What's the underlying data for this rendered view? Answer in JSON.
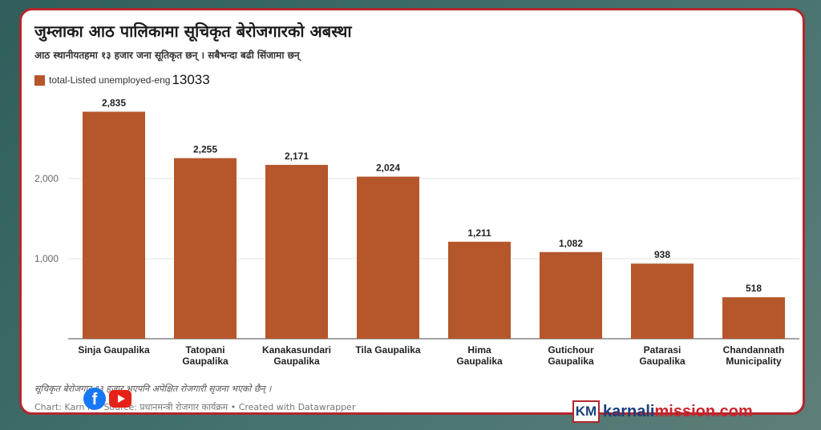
{
  "header": {
    "title": "जुम्लाका आठ पालिकामा सूचिकृत बेरोजगारको अबस्था",
    "subtitle": "आठ स्थानीयतहमा १३ हजार जना सूतिकृत छन् । सबैभन्दा बढी सिंजामा छन्"
  },
  "legend": {
    "label": "total-Listed unemployed-eng",
    "total": "13033",
    "color": "#b5562b"
  },
  "chart_data": {
    "type": "bar",
    "categories": [
      [
        "Sinja Gaupalika"
      ],
      [
        "Tatopani",
        "Gaupalika"
      ],
      [
        "Kanakasundari",
        "Gaupalika"
      ],
      [
        "Tila Gaupalika"
      ],
      [
        "Hima",
        "Gaupalika"
      ],
      [
        "Gutichour",
        "Gaupalika"
      ],
      [
        "Patarasi",
        "Gaupalika"
      ],
      [
        "Chandannath",
        "Municipality"
      ]
    ],
    "values": [
      2835,
      2255,
      2171,
      2024,
      1211,
      1082,
      938,
      518
    ],
    "value_labels": [
      "2,835",
      "2,255",
      "2,171",
      "2,024",
      "1,211",
      "1,082",
      "938",
      "518"
    ],
    "yticks": [
      {
        "value": 1000,
        "label": "1,000"
      },
      {
        "value": 2000,
        "label": "2,000"
      }
    ],
    "ylim": [
      0,
      3000
    ],
    "grid": true,
    "bar_color": "#b5562b"
  },
  "footer": {
    "note": "सूचिकृत बेरोजगार १३ हजार भएपनि अपेक्षित रोजगारी सृजना भएको छैन् ।",
    "credit": "Chart: Karn       n • Source: प्रधानमन्त्री रोजगार कार्यक्रम • Created with Datawrapper",
    "facebook_glyph": "f",
    "facebook_icon": "facebook-icon",
    "youtube_icon": "youtube-icon"
  },
  "brand": {
    "logo_text": "KM",
    "name_part1": "karnali",
    "name_part2": "mission.com"
  }
}
